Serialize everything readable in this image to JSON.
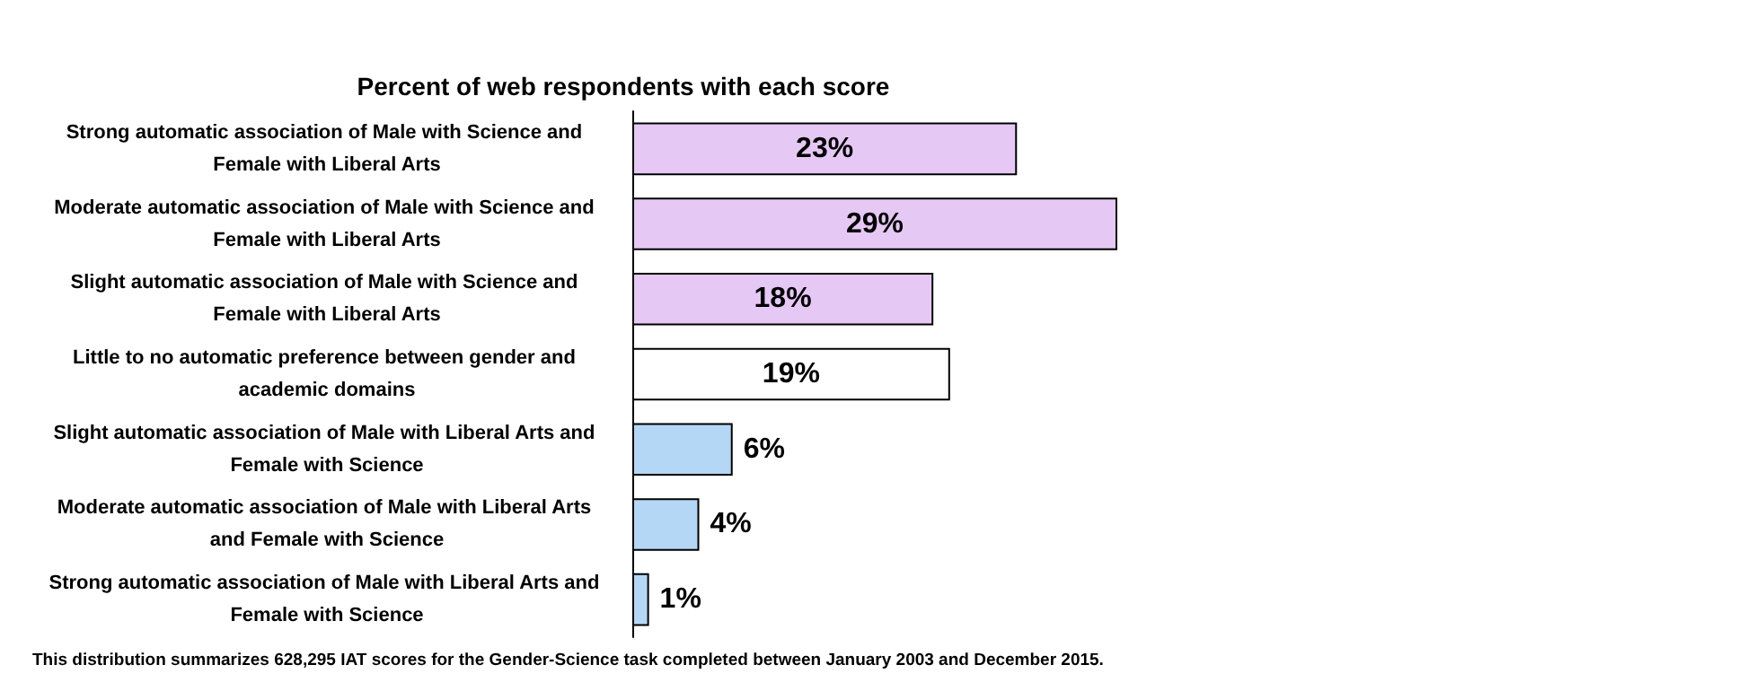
{
  "chart_data": {
    "type": "bar",
    "orientation": "horizontal",
    "title": "Percent of web respondents with each score",
    "categories": [
      "Strong automatic association of Male with Science and Female with Liberal Arts",
      "Moderate automatic association of Male with Science and Female with Liberal Arts",
      "Slight automatic association of Male with Science and Female with Liberal Arts",
      "Little to no automatic preference between gender and academic domains",
      "Slight automatic association of Male with Liberal Arts and Female with Science",
      "Moderate automatic association of Male with Liberal Arts and Female with Science",
      "Strong automatic association of Male with Liberal Arts and Female with Science"
    ],
    "values": [
      23,
      29,
      18,
      19,
      6,
      4,
      1
    ],
    "colors": [
      "#e6c8f5",
      "#e6c8f5",
      "#e6c8f5",
      "#ffffff",
      "#b4d7f5",
      "#b4d7f5",
      "#b4d7f5"
    ],
    "value_labels": [
      "23%",
      "29%",
      "18%",
      "19%",
      "6%",
      "4%",
      "1%"
    ],
    "annotations": [
      "This distribution summarizes 628,295 IAT scores for the Gender-Science task completed between January 2003 and December 2015."
    ]
  }
}
